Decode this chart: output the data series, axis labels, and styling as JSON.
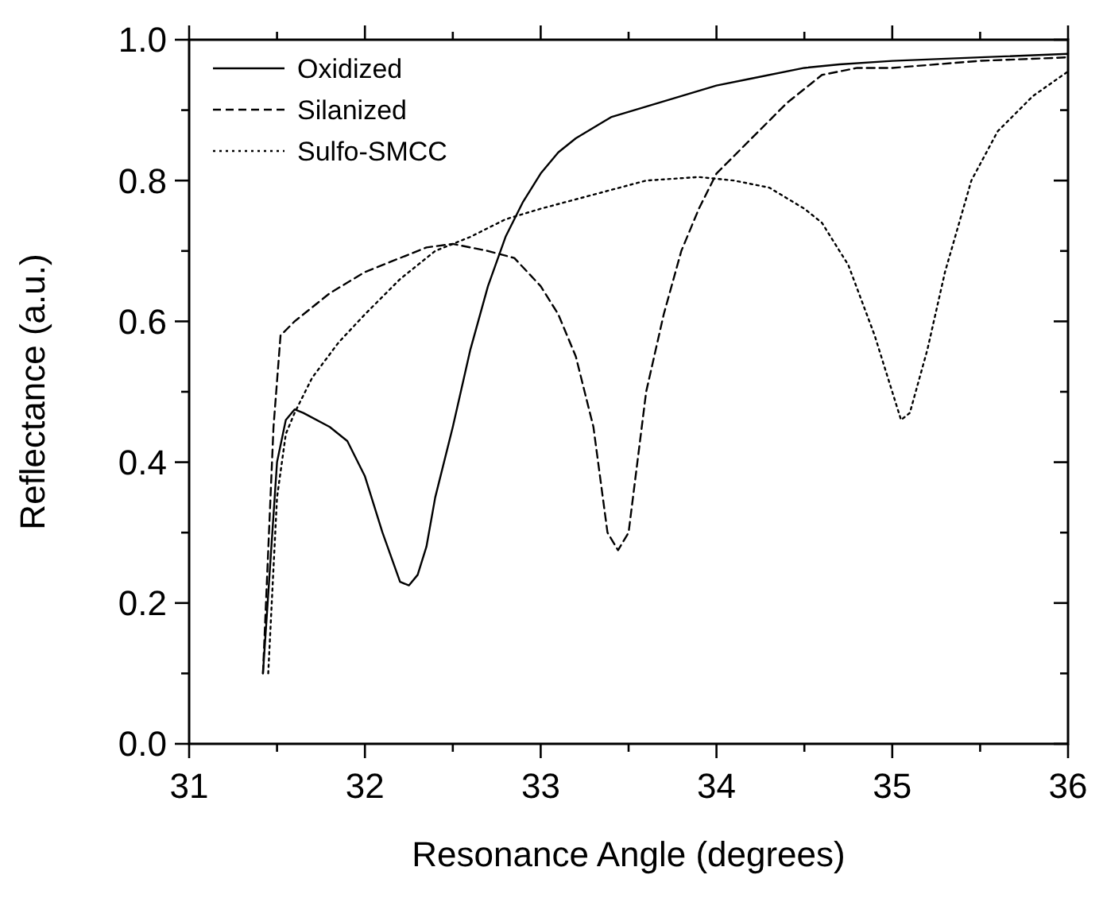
{
  "chart_data": {
    "type": "line",
    "xlabel": "Resonance Angle (degrees)",
    "ylabel": "Reflectance (a.u.)",
    "xlim": [
      31,
      36
    ],
    "ylim": [
      0,
      1
    ],
    "xticks": [
      31,
      {
        "value": 31.5,
        "label": null
      },
      32,
      {
        "value": 32.5,
        "label": null
      },
      33,
      {
        "value": 33.5,
        "label": null
      },
      34,
      {
        "value": 34.5,
        "label": null
      },
      35,
      {
        "value": 35.5,
        "label": null
      },
      36
    ],
    "yticks": [
      {
        "value": 0,
        "label": "0.0"
      },
      {
        "value": 0.1,
        "label": null
      },
      {
        "value": 0.2,
        "label": "0.2"
      },
      {
        "value": 0.3,
        "label": null
      },
      {
        "value": 0.4,
        "label": "0.4"
      },
      {
        "value": 0.5,
        "label": null
      },
      {
        "value": 0.6,
        "label": "0.6"
      },
      {
        "value": 0.7,
        "label": null
      },
      {
        "value": 0.8,
        "label": "0.8"
      },
      {
        "value": 0.9,
        "label": null
      },
      {
        "value": 1,
        "label": "1.0"
      }
    ],
    "grid": false,
    "legend": "top left",
    "marker": "none",
    "series": [
      {
        "name": "Oxidized",
        "color": "#000000",
        "line_style": "solid",
        "x": [
          31.42,
          31.5,
          31.55,
          31.6,
          31.65,
          31.8,
          31.9,
          32.0,
          32.1,
          32.2,
          32.25,
          32.3,
          32.35,
          32.4,
          32.5,
          32.6,
          32.7,
          32.8,
          32.9,
          33.0,
          33.1,
          33.2,
          33.4,
          33.6,
          33.8,
          34.0,
          34.2,
          34.5,
          34.7,
          35.0,
          35.5,
          36
        ],
        "values": [
          0.1,
          0.4,
          0.46,
          0.475,
          0.47,
          0.45,
          0.43,
          0.38,
          0.3,
          0.23,
          0.225,
          0.24,
          0.28,
          0.35,
          0.45,
          0.56,
          0.65,
          0.72,
          0.77,
          0.81,
          0.84,
          0.86,
          0.89,
          0.905,
          0.92,
          0.935,
          0.945,
          0.96,
          0.965,
          0.97,
          0.975,
          0.98
        ]
      },
      {
        "name": "Silanized",
        "color": "#000000",
        "line_style": "dashed",
        "x": [
          31.42,
          31.48,
          31.52,
          31.6,
          31.8,
          32.0,
          32.2,
          32.35,
          32.5,
          32.7,
          32.85,
          33.0,
          33.1,
          33.2,
          33.3,
          33.38,
          33.44,
          33.5,
          33.55,
          33.6,
          33.7,
          33.8,
          33.9,
          34.0,
          34.2,
          34.4,
          34.6,
          34.8,
          35.0,
          35.5,
          36
        ],
        "values": [
          0.1,
          0.45,
          0.58,
          0.6,
          0.64,
          0.67,
          0.69,
          0.705,
          0.71,
          0.7,
          0.69,
          0.65,
          0.61,
          0.55,
          0.45,
          0.3,
          0.275,
          0.3,
          0.4,
          0.5,
          0.61,
          0.7,
          0.76,
          0.81,
          0.86,
          0.91,
          0.95,
          0.96,
          0.96,
          0.97,
          0.975
        ]
      },
      {
        "name": "Sulfo-SMCC",
        "color": "#000000",
        "line_style": "dotted",
        "x": [
          31.45,
          31.5,
          31.55,
          31.6,
          31.7,
          31.85,
          32.0,
          32.2,
          32.4,
          32.6,
          32.8,
          33.0,
          33.3,
          33.6,
          33.9,
          34.1,
          34.3,
          34.5,
          34.6,
          34.75,
          34.9,
          35.0,
          35.05,
          35.1,
          35.2,
          35.3,
          35.45,
          35.6,
          35.8,
          36
        ],
        "values": [
          0.1,
          0.35,
          0.44,
          0.47,
          0.52,
          0.57,
          0.61,
          0.66,
          0.7,
          0.72,
          0.745,
          0.76,
          0.78,
          0.8,
          0.805,
          0.8,
          0.79,
          0.76,
          0.74,
          0.68,
          0.58,
          0.5,
          0.46,
          0.47,
          0.56,
          0.67,
          0.8,
          0.87,
          0.92,
          0.955
        ]
      }
    ]
  }
}
